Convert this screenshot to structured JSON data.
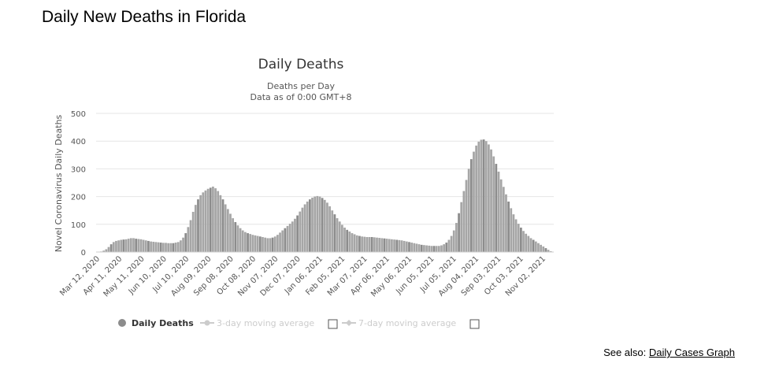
{
  "page": {
    "title": "Daily New Deaths in Florida",
    "see_also_label": "See also:",
    "see_also_link": "Daily Cases Graph"
  },
  "colors": {
    "bar": "#a6a6a6",
    "bar_dark": "#8c8c8c",
    "grid": "#e6e6e6",
    "legend_inactive": "#cccccc",
    "text": "#333333"
  },
  "chart_data": {
    "type": "bar",
    "title": "Daily Deaths",
    "subtitle_lines": [
      "Deaths per Day",
      "Data as of 0:00 GMT+8"
    ],
    "ylabel": "Novel Coronavirus Daily Deaths",
    "xlabel": "",
    "ylim": [
      0,
      500
    ],
    "yticks": [
      0,
      100,
      200,
      300,
      400,
      500
    ],
    "grid": true,
    "x_tick_labels": [
      "Mar 12, 2020",
      "Apr 11, 2020",
      "May 11, 2020",
      "Jun 10, 2020",
      "Jul 10, 2020",
      "Aug 09, 2020",
      "Sep 08, 2020",
      "Oct 08, 2020",
      "Nov 07, 2020",
      "Dec 07, 2020",
      "Jan 06, 2021",
      "Feb 05, 2021",
      "Mar 07, 2021",
      "Apr 06, 2021",
      "May 06, 2021",
      "Jun 05, 2021",
      "Jul 05, 2021",
      "Aug 04, 2021",
      "Sep 03, 2021",
      "Oct 03, 2021",
      "Nov 02, 2021"
    ],
    "legend_position": "bottom",
    "legend": [
      {
        "name": "Daily Deaths",
        "active": true
      },
      {
        "name": "3-day moving average",
        "active": false
      },
      {
        "name": "7-day moving average",
        "active": false
      }
    ],
    "x_start": "Mar 12, 2020",
    "x_step_days": 3,
    "series": [
      {
        "name": "Daily Deaths",
        "values": [
          0,
          2,
          5,
          10,
          18,
          28,
          36,
          40,
          42,
          44,
          45,
          46,
          48,
          50,
          50,
          48,
          47,
          46,
          44,
          42,
          40,
          38,
          37,
          36,
          35,
          34,
          33,
          33,
          32,
          32,
          32,
          34,
          36,
          42,
          52,
          68,
          90,
          115,
          145,
          170,
          190,
          205,
          215,
          222,
          228,
          232,
          236,
          230,
          220,
          205,
          190,
          172,
          155,
          138,
          122,
          108,
          96,
          86,
          78,
          72,
          68,
          65,
          62,
          60,
          58,
          56,
          54,
          52,
          50,
          50,
          52,
          56,
          62,
          70,
          78,
          86,
          94,
          102,
          110,
          120,
          132,
          146,
          160,
          172,
          182,
          190,
          196,
          200,
          202,
          200,
          195,
          188,
          178,
          165,
          150,
          136,
          122,
          110,
          98,
          88,
          80,
          74,
          68,
          64,
          60,
          58,
          56,
          55,
          54,
          54,
          54,
          53,
          52,
          51,
          50,
          49,
          48,
          47,
          46,
          45,
          44,
          43,
          42,
          40,
          38,
          36,
          34,
          32,
          30,
          28,
          26,
          25,
          24,
          23,
          22,
          22,
          22,
          22,
          24,
          28,
          34,
          44,
          58,
          78,
          105,
          140,
          180,
          220,
          260,
          300,
          335,
          362,
          384,
          398,
          405,
          406,
          400,
          388,
          370,
          345,
          318,
          290,
          262,
          235,
          208,
          182,
          158,
          136,
          118,
          102,
          88,
          76,
          66,
          58,
          50,
          44,
          38,
          32,
          26,
          20,
          14,
          8,
          3
        ]
      }
    ]
  }
}
